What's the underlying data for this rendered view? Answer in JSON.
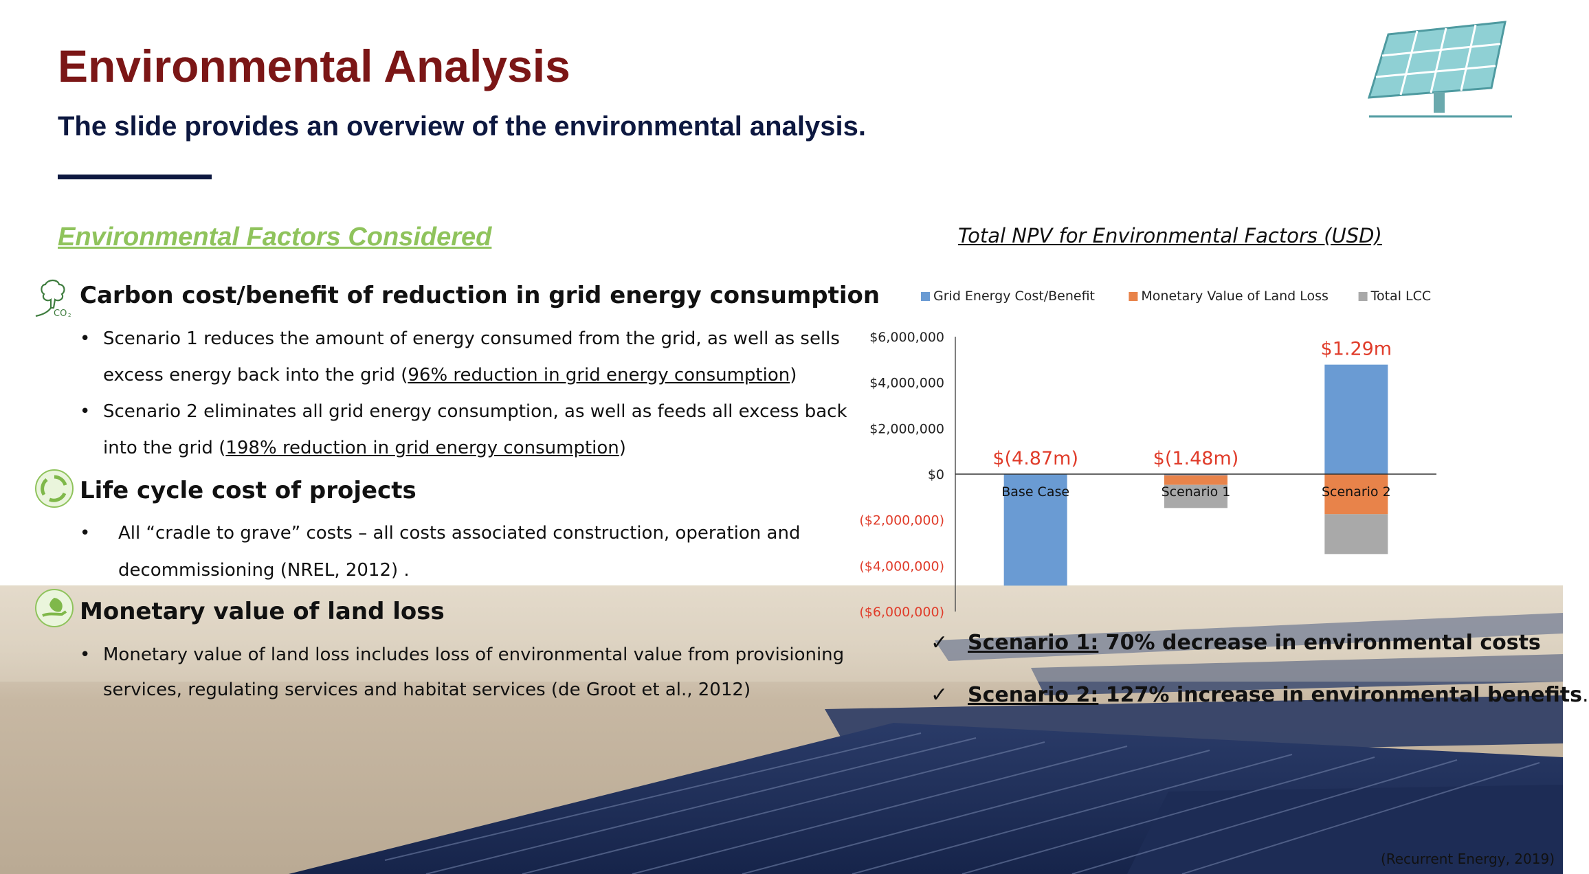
{
  "slide": {
    "title": "Environmental Analysis",
    "subtitle": "The slide provides an overview of the environmental analysis."
  },
  "factors": {
    "heading": "Environmental Factors Considered",
    "items": [
      {
        "icon": "co2-tree-icon",
        "title": "Carbon cost/benefit of reduction in grid energy consumption",
        "bullets": [
          {
            "line1": "Scenario 1 reduces the amount of energy consumed from the grid, as well as sells",
            "line2_pre": "excess energy back into the grid (",
            "line2_link": "96% reduction in grid energy consumption",
            "line2_post": ")"
          },
          {
            "line1": "Scenario 2 eliminates all grid energy consumption, as well as feeds all excess back",
            "line2_pre": "into the grid (",
            "line2_link": "198% reduction in grid energy consumption",
            "line2_post": ")"
          }
        ]
      },
      {
        "icon": "recycle-icon",
        "title": "Life cycle cost of projects",
        "bullets": [
          {
            "line1": "All “cradle to grave” costs – all costs associated construction, operation and",
            "line2": "decommissioning (NREL, 2012) ."
          }
        ]
      },
      {
        "icon": "leaf-hand-icon",
        "title": "Monetary value of land loss",
        "bullets": [
          {
            "line1": "Monetary value of land loss includes loss of environmental value from provisioning",
            "line2": "services, regulating services and habitat services (de Groot et al., 2012)"
          }
        ]
      }
    ]
  },
  "chart_data": {
    "type": "bar",
    "title": "Total NPV for Environmental Factors (USD)",
    "categories": [
      "Base Case",
      "Scenario 1",
      "Scenario 2"
    ],
    "series": [
      {
        "name": "Grid Energy Cost/Benefit",
        "color": "#6a9bd3",
        "values": [
          -4870000,
          -50000,
          4780000
        ]
      },
      {
        "name": "Monetary Value of Land Loss",
        "color": "#e8834a",
        "values": [
          0,
          -420000,
          -1750000
        ]
      },
      {
        "name": "Total LCC",
        "color": "#a9a9a9",
        "values": [
          0,
          -1010000,
          -1740000
        ]
      }
    ],
    "ylim": [
      -6000000,
      6000000
    ],
    "y_ticks": [
      "$6,000,000",
      "$4,000,000",
      "$2,000,000",
      "$0",
      "($2,000,000)",
      "($4,000,000)",
      "($6,000,000)"
    ],
    "y_tick_values": [
      6000000,
      4000000,
      2000000,
      0,
      -2000000,
      -4000000,
      -6000000
    ],
    "negative_tick_color": "#e03c2a",
    "annotations": [
      "$(4.87m)",
      "$(1.48m)",
      "$1.29m"
    ],
    "annotation_color": "#e03c2a",
    "legend_position": "top",
    "grid": false
  },
  "conclusions": [
    {
      "label": "Scenario 1:",
      "text": " 70% decrease in environmental costs",
      "suffix": ""
    },
    {
      "label": "Scenario 2:",
      "text": " 127% increase in environmental benefits",
      "suffix": "."
    }
  ],
  "credit": "(Recurrent Energy, 2019)",
  "colors": {
    "title": "#7b1616",
    "subtitle": "#0d1840",
    "section_heading": "#8fc35c"
  }
}
